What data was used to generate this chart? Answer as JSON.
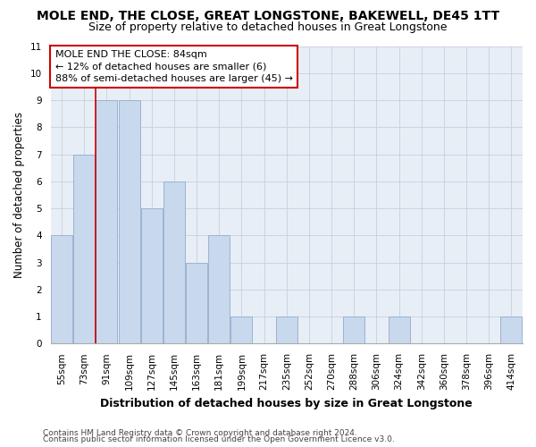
{
  "title": "MOLE END, THE CLOSE, GREAT LONGSTONE, BAKEWELL, DE45 1TT",
  "subtitle": "Size of property relative to detached houses in Great Longstone",
  "xlabel": "Distribution of detached houses by size in Great Longstone",
  "ylabel": "Number of detached properties",
  "categories": [
    "55sqm",
    "73sqm",
    "91sqm",
    "109sqm",
    "127sqm",
    "145sqm",
    "163sqm",
    "181sqm",
    "199sqm",
    "217sqm",
    "235sqm",
    "252sqm",
    "270sqm",
    "288sqm",
    "306sqm",
    "324sqm",
    "342sqm",
    "360sqm",
    "378sqm",
    "396sqm",
    "414sqm"
  ],
  "values": [
    4,
    7,
    9,
    9,
    5,
    6,
    3,
    4,
    1,
    0,
    1,
    0,
    0,
    1,
    0,
    1,
    0,
    0,
    0,
    0,
    1
  ],
  "bar_color": "#c8d8ed",
  "bar_edgecolor": "#9ab4d4",
  "bar_linewidth": 0.7,
  "vline_x": 1.5,
  "vline_color": "#cc0000",
  "vline_linewidth": 1.2,
  "annotation_line1": "MOLE END THE CLOSE: 84sqm",
  "annotation_line2": "← 12% of detached houses are smaller (6)",
  "annotation_line3": "88% of semi-detached houses are larger (45) →",
  "annotation_box_color": "#cc0000",
  "ylim": [
    0,
    11
  ],
  "yticks": [
    0,
    1,
    2,
    3,
    4,
    5,
    6,
    7,
    8,
    9,
    10,
    11
  ],
  "grid_color": "#c8d0dc",
  "background_color": "#e8eef6",
  "footnote1": "Contains HM Land Registry data © Crown copyright and database right 2024.",
  "footnote2": "Contains public sector information licensed under the Open Government Licence v3.0.",
  "title_fontsize": 10,
  "subtitle_fontsize": 9,
  "xlabel_fontsize": 9,
  "ylabel_fontsize": 8.5,
  "tick_fontsize": 7.5,
  "annotation_fontsize": 8,
  "footnote_fontsize": 6.5
}
